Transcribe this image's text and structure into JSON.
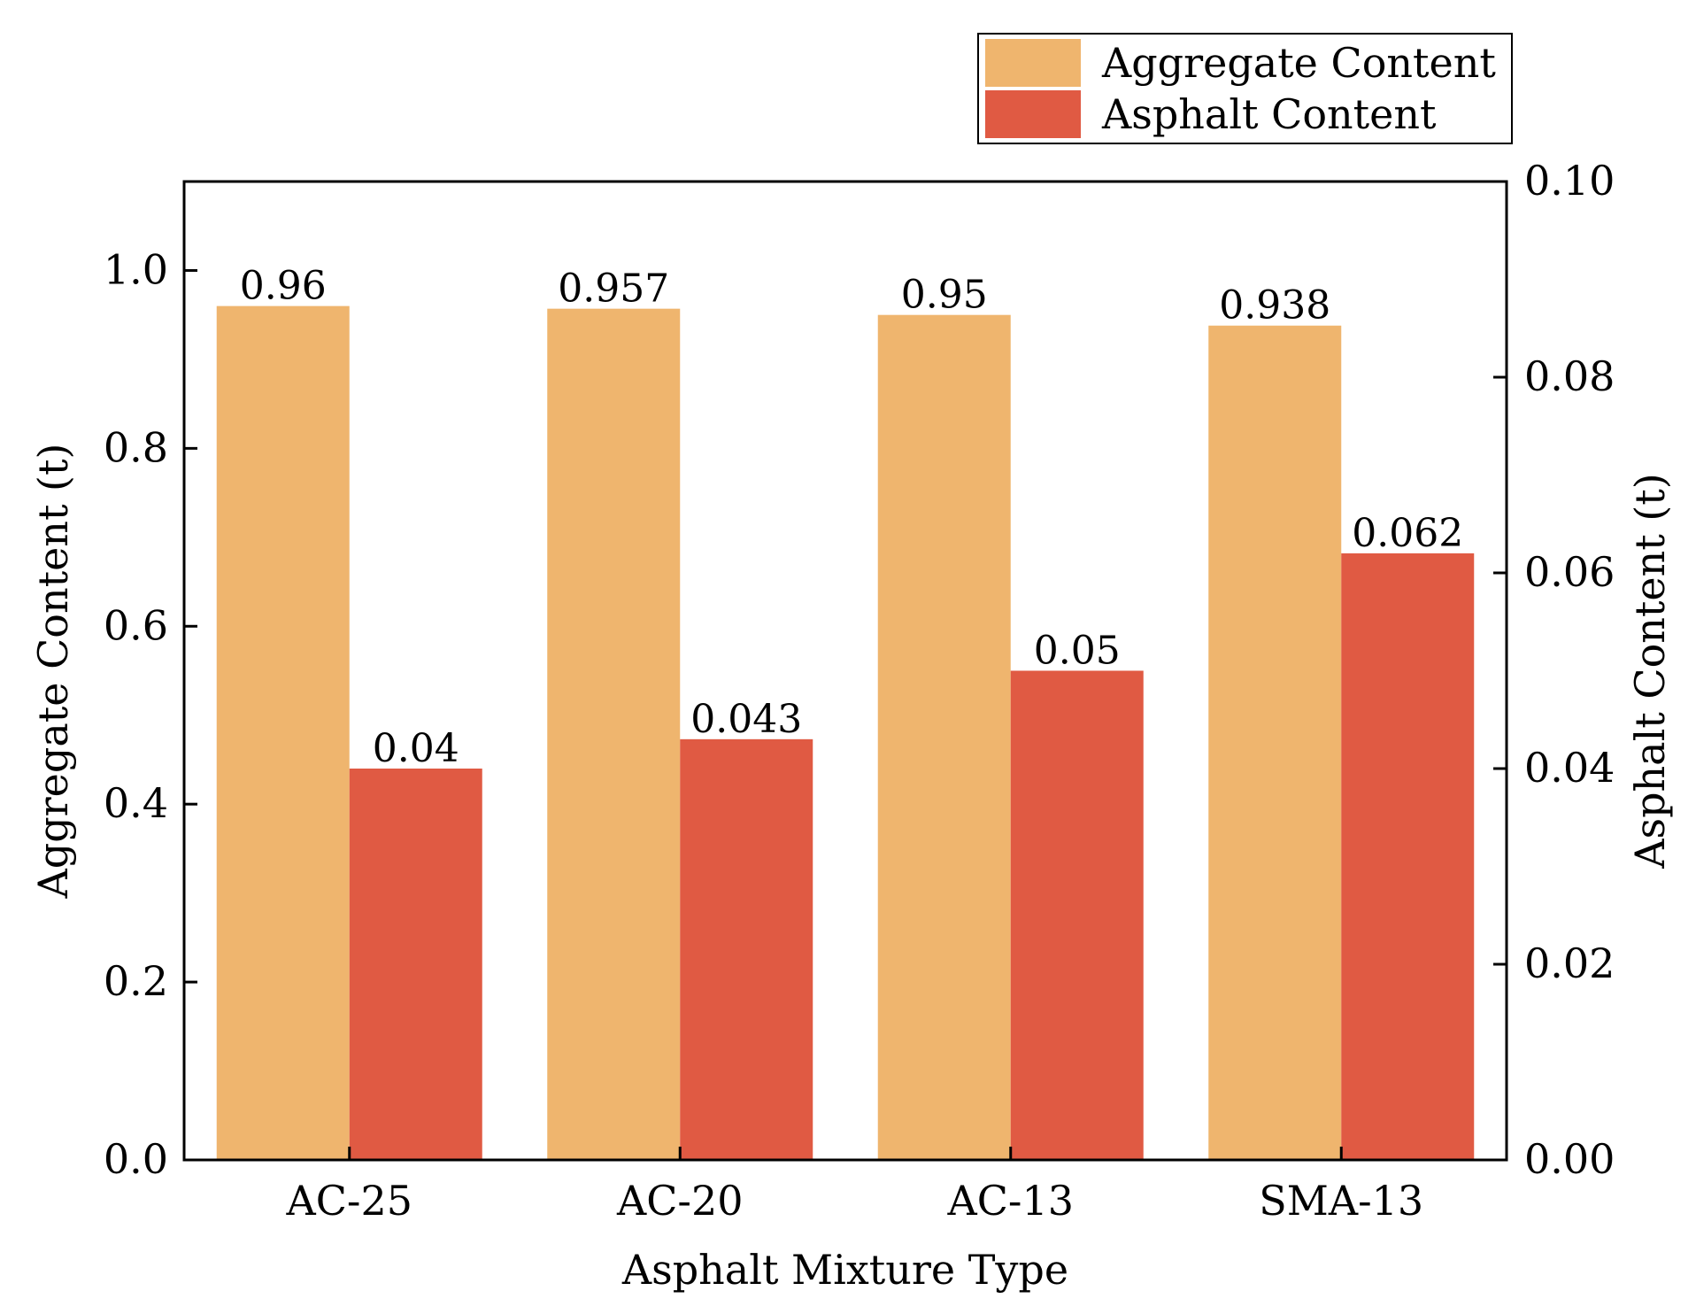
{
  "chart_data": {
    "type": "bar",
    "title": "",
    "xlabel": "Asphalt Mixture Type",
    "ylabel": "Aggregate Content (t)",
    "y2label": "Asphalt Content (t)",
    "categories": [
      "AC-25",
      "AC-20",
      "AC-13",
      "SMA-13"
    ],
    "ylim": [
      0,
      1.1
    ],
    "y2lim": [
      0,
      0.1
    ],
    "yticks": [
      "0.0",
      "0.2",
      "0.4",
      "0.6",
      "0.8",
      "1.0"
    ],
    "y2ticks": [
      "0.00",
      "0.02",
      "0.04",
      "0.06",
      "0.08",
      "0.10"
    ],
    "legend_position": "top-right, outside plot",
    "series": [
      {
        "name": "Aggregate Content",
        "axis": "left",
        "color": "#EFB56E",
        "values": [
          0.96,
          0.957,
          0.95,
          0.938
        ],
        "labels": [
          "0.96",
          "0.957",
          "0.95",
          "0.938"
        ]
      },
      {
        "name": "Asphalt Content",
        "axis": "right",
        "color": "#E05A43",
        "values": [
          0.04,
          0.043,
          0.05,
          0.062
        ],
        "labels": [
          "0.04",
          "0.043",
          "0.05",
          "0.062"
        ]
      }
    ]
  }
}
